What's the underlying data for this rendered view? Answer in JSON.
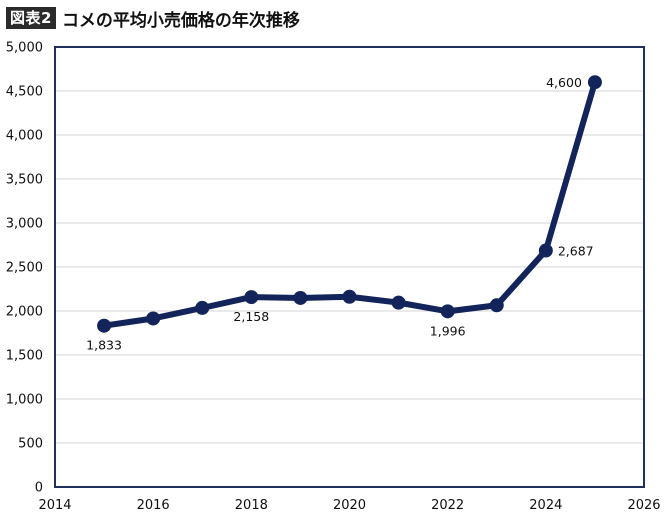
{
  "header": {
    "badge": "図表2",
    "title": "コメの平均小売価格の年次推移"
  },
  "colors": {
    "line": "#13245a",
    "grid": "#e3e3e3",
    "frame": "#1f2f5e"
  },
  "chart_data": {
    "type": "line",
    "title": "コメの平均小売価格の年次推移",
    "xlabel": "",
    "ylabel": "",
    "xlim": [
      2014,
      2026
    ],
    "ylim": [
      0,
      5000
    ],
    "x_ticks": [
      2014,
      2016,
      2018,
      2020,
      2022,
      2024,
      2026
    ],
    "y_ticks": [
      0,
      500,
      1000,
      1500,
      2000,
      2500,
      3000,
      3500,
      4000,
      4500,
      5000
    ],
    "grid": true,
    "x": [
      2015,
      2016,
      2017,
      2018,
      2019,
      2020,
      2021,
      2022,
      2023,
      2024,
      2025
    ],
    "series": [
      {
        "values": [
          1833,
          1915,
          2035,
          2158,
          2148,
          2162,
          2095,
          1996,
          2065,
          2687,
          4600
        ]
      }
    ],
    "data_labels": [
      {
        "x": 2015,
        "text": "1,833",
        "pos": "below"
      },
      {
        "x": 2018,
        "text": "2,158",
        "pos": "below"
      },
      {
        "x": 2022,
        "text": "1,996",
        "pos": "below"
      },
      {
        "x": 2024,
        "text": "2,687",
        "pos": "right"
      },
      {
        "x": 2025,
        "text": "4,600",
        "pos": "left"
      }
    ]
  }
}
